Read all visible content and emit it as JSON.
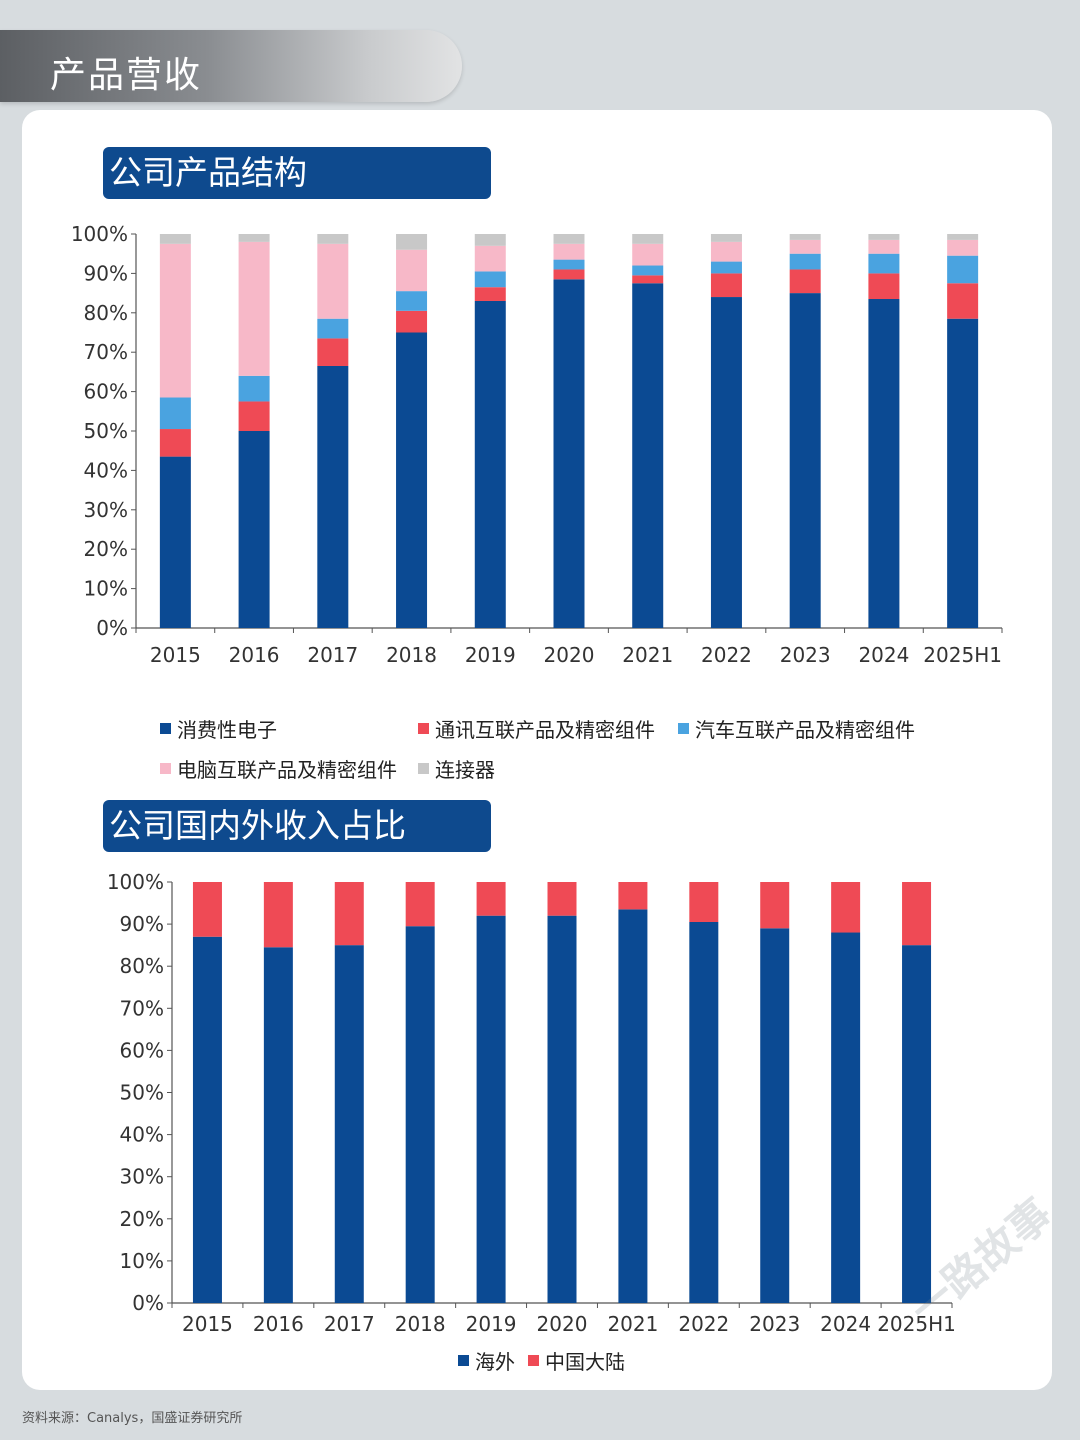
{
  "header": {
    "title": "产品营收"
  },
  "colors": {
    "navy": "#0b4a93",
    "red": "#ef4a55",
    "lightblue": "#4aa3e0",
    "pink": "#f7b8c8",
    "gray": "#c8c8c8"
  },
  "chart_data": [
    {
      "type": "bar",
      "stacked": true,
      "title": "公司产品结构",
      "categories": [
        "2015",
        "2016",
        "2017",
        "2018",
        "2019",
        "2020",
        "2021",
        "2022",
        "2023",
        "2024",
        "2025H1"
      ],
      "ylim": [
        0,
        100
      ],
      "yticks": [
        "0%",
        "10%",
        "20%",
        "30%",
        "40%",
        "50%",
        "60%",
        "70%",
        "80%",
        "90%",
        "100%"
      ],
      "series": [
        {
          "name": "消费性电子",
          "color": "#0b4a93",
          "values": [
            43.5,
            50,
            66.5,
            75,
            83,
            88.5,
            87.5,
            84,
            85,
            83.5,
            78.5
          ]
        },
        {
          "name": "通讯互联产品及精密组件",
          "color": "#ef4a55",
          "values": [
            7,
            7.5,
            7,
            5.5,
            3.5,
            2.5,
            2,
            6,
            6,
            6.5,
            9
          ]
        },
        {
          "name": "汽车互联产品及精密组件",
          "color": "#4aa3e0",
          "values": [
            8,
            6.5,
            5,
            5,
            4,
            2.5,
            2.5,
            3,
            4,
            5,
            7
          ]
        },
        {
          "name": "电脑互联产品及精密组件",
          "color": "#f7b8c8",
          "values": [
            39,
            34,
            19,
            10.5,
            6.5,
            4,
            5.5,
            5,
            3.5,
            3.5,
            4
          ]
        },
        {
          "name": "连接器",
          "color": "#c8c8c8",
          "values": [
            2.5,
            2,
            2.5,
            4,
            3,
            2.5,
            2.5,
            2,
            1.5,
            1.5,
            1.5
          ]
        }
      ]
    },
    {
      "type": "bar",
      "stacked": true,
      "title": "公司国内外收入占比",
      "categories": [
        "2015",
        "2016",
        "2017",
        "2018",
        "2019",
        "2020",
        "2021",
        "2022",
        "2023",
        "2024",
        "2025H1"
      ],
      "ylim": [
        0,
        100
      ],
      "yticks": [
        "0%",
        "10%",
        "20%",
        "30%",
        "40%",
        "50%",
        "60%",
        "70%",
        "80%",
        "90%",
        "100%"
      ],
      "series": [
        {
          "name": "海外",
          "color": "#0b4a93",
          "values": [
            87,
            84.5,
            85,
            89.5,
            92,
            92,
            93.5,
            90.5,
            89,
            88,
            85
          ]
        },
        {
          "name": "中国大陆",
          "color": "#ef4a55",
          "values": [
            13,
            15.5,
            15,
            10.5,
            8,
            8,
            6.5,
            9.5,
            11,
            12,
            15
          ]
        }
      ]
    }
  ],
  "source": "资料来源：Canalys，国盛证券研究所",
  "watermark": "一路故事"
}
